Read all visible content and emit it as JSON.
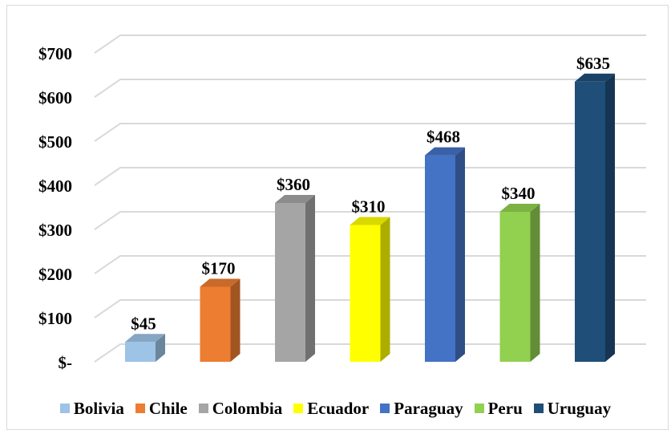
{
  "chart_data": {
    "type": "bar",
    "title": "",
    "xlabel": "",
    "ylabel": "",
    "categories": [
      "Bolivia",
      "Chile",
      "Colombia",
      "Ecuador",
      "Paraguay",
      "Peru",
      "Uruguay"
    ],
    "values": [
      45,
      170,
      360,
      310,
      468,
      340,
      635
    ],
    "data_labels": [
      "$45",
      "$170",
      "$360",
      "$310",
      "$468",
      "$340",
      "$635"
    ],
    "colors": [
      "#9dc3e6",
      "#ed7d31",
      "#a5a5a5",
      "#ffff00",
      "#4472c4",
      "#92d050",
      "#1f4e79"
    ],
    "ylim": [
      0,
      700
    ],
    "yticks": [
      0,
      100,
      200,
      300,
      400,
      500,
      600,
      700
    ],
    "ytick_labels": [
      "$-",
      "$100",
      "$200",
      "$300",
      "$400",
      "$500",
      "$600",
      "$700"
    ],
    "grid": true,
    "style": "3d-column",
    "legend_position": "bottom"
  }
}
